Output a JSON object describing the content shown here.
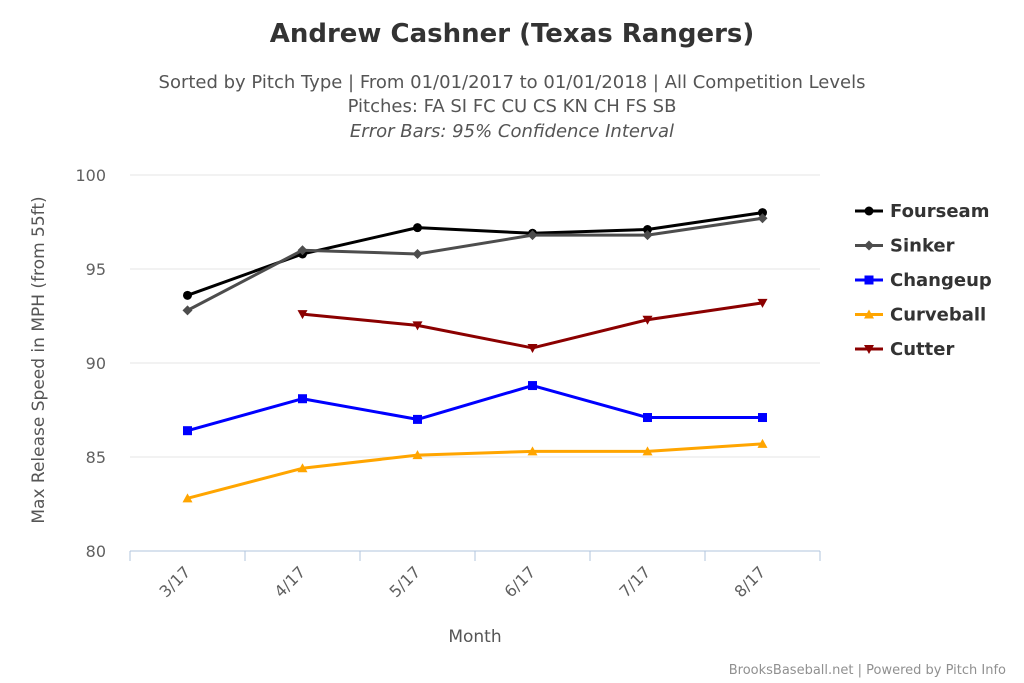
{
  "chart_data": {
    "type": "line",
    "title": "Andrew Cashner (Texas Rangers)",
    "subtitle_lines": [
      "Sorted by Pitch Type | From 01/01/2017 to 01/01/2018 | All Competition Levels",
      "Pitches: FA SI FC CU CS KN CH FS SB"
    ],
    "subtitle_note": "Error Bars: 95% Confidence Interval",
    "xlabel": "Month",
    "ylabel": "Max Release Speed in MPH (from 55ft)",
    "categories": [
      "3/17",
      "4/17",
      "5/17",
      "6/17",
      "7/17",
      "8/17"
    ],
    "ylim": [
      80,
      100
    ],
    "yticks": [
      "80",
      "85",
      "90",
      "95",
      "100"
    ],
    "grid": "horizontal",
    "legend_position": "right",
    "series": [
      {
        "name": "Fourseam",
        "color": "#000000",
        "marker": "circle",
        "values": [
          93.6,
          95.8,
          97.2,
          96.9,
          97.1,
          98.0
        ]
      },
      {
        "name": "Sinker",
        "color": "#4d4d4d",
        "marker": "diamond",
        "values": [
          92.8,
          96.0,
          95.8,
          96.8,
          96.8,
          97.7
        ]
      },
      {
        "name": "Changeup",
        "color": "#0000ff",
        "marker": "square",
        "values": [
          86.4,
          88.1,
          87.0,
          88.8,
          87.1,
          87.1
        ]
      },
      {
        "name": "Curveball",
        "color": "#ffa500",
        "marker": "triangle",
        "values": [
          82.8,
          84.4,
          85.1,
          85.3,
          85.3,
          85.7
        ]
      },
      {
        "name": "Cutter",
        "color": "#8b0000",
        "marker": "triangle-down",
        "values": [
          null,
          92.6,
          92.0,
          90.8,
          92.3,
          93.2
        ]
      }
    ]
  },
  "credits": "BrooksBaseball.net | Powered by Pitch Info"
}
